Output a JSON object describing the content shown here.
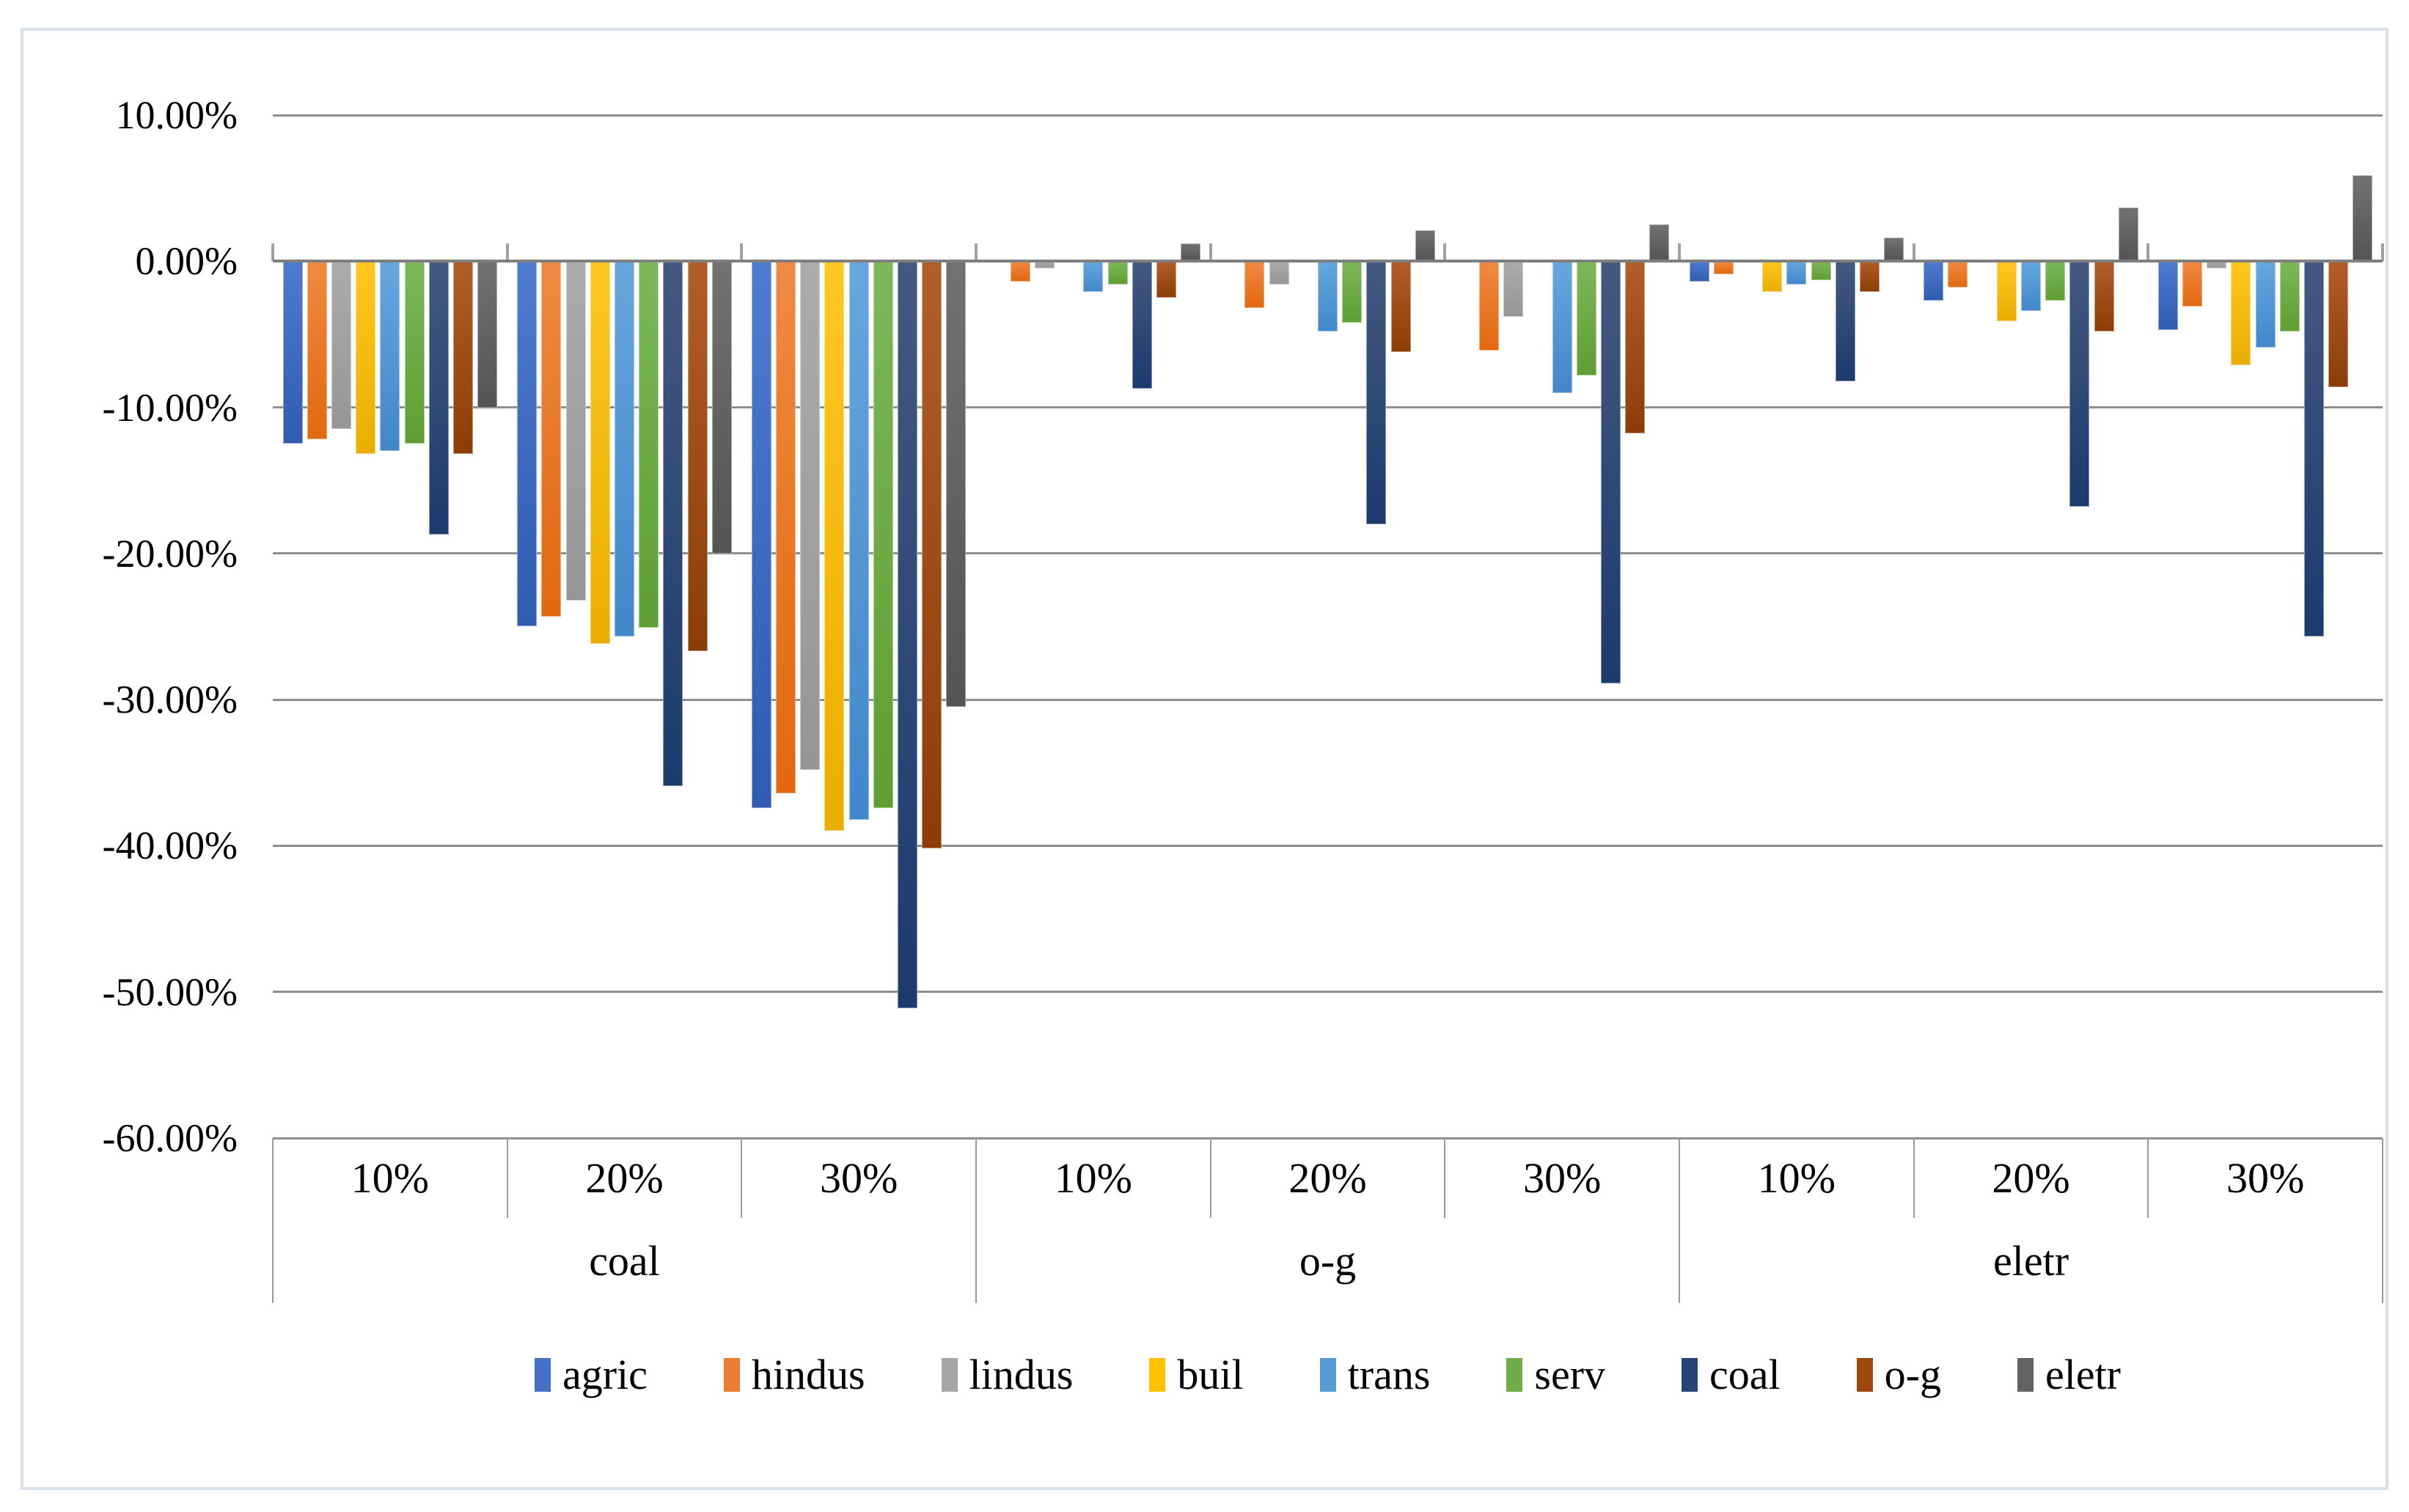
{
  "chart_data": {
    "type": "bar",
    "title": "",
    "y_axis": {
      "unit": "percent",
      "max": 10,
      "min": -60,
      "grid": true,
      "ticks": [
        {
          "value": 10,
          "label": "10.00%"
        },
        {
          "value": 0,
          "label": "0.00%"
        },
        {
          "value": -10,
          "label": "-10.00%"
        },
        {
          "value": -20,
          "label": "-20.00%"
        },
        {
          "value": -30,
          "label": "-30.00%"
        },
        {
          "value": -40,
          "label": "-40.00%"
        },
        {
          "value": -50,
          "label": "-50.00%"
        },
        {
          "value": -60,
          "label": "-60.00%"
        }
      ]
    },
    "x_axis": {
      "tier1_labels": [
        "10%",
        "20%",
        "30%",
        "10%",
        "20%",
        "30%",
        "10%",
        "20%",
        "30%"
      ],
      "tier2_labels": [
        "coal",
        "o-g",
        "eletr"
      ],
      "groups": [
        {
          "fuel": "coal",
          "rate": "10%"
        },
        {
          "fuel": "coal",
          "rate": "20%"
        },
        {
          "fuel": "coal",
          "rate": "30%"
        },
        {
          "fuel": "o-g",
          "rate": "10%"
        },
        {
          "fuel": "o-g",
          "rate": "20%"
        },
        {
          "fuel": "o-g",
          "rate": "30%"
        },
        {
          "fuel": "eletr",
          "rate": "10%"
        },
        {
          "fuel": "eletr",
          "rate": "20%"
        },
        {
          "fuel": "eletr",
          "rate": "30%"
        }
      ]
    },
    "legend": {
      "position": "bottom",
      "entries": [
        "agric",
        "hindus",
        "lindus",
        "buil",
        "trans",
        "serv",
        "coal",
        "o-g",
        "eletr"
      ]
    },
    "series": [
      {
        "name": "agric",
        "color": "#4472C4",
        "color_top": "#4d7bcf",
        "color_bottom": "#2f5cb0",
        "values": [
          -12.5,
          -25.0,
          -37.4,
          0.0,
          0.0,
          0.0,
          -1.4,
          -2.7,
          -4.7
        ]
      },
      {
        "name": "hindus",
        "color": "#ED7D31",
        "color_top": "#f08a42",
        "color_bottom": "#e2680e",
        "values": [
          -12.2,
          -24.3,
          -36.4,
          -1.4,
          -3.2,
          -6.1,
          -0.9,
          -1.8,
          -3.1
        ]
      },
      {
        "name": "lindus",
        "color": "#A5A5A5",
        "color_top": "#acacac",
        "color_bottom": "#969696",
        "values": [
          -11.5,
          -23.2,
          -34.8,
          -0.5,
          -1.6,
          -3.8,
          0.0,
          0.0,
          -0.5
        ]
      },
      {
        "name": "buil",
        "color": "#FFC000",
        "color_top": "#ffc81f",
        "color_bottom": "#eaae00",
        "values": [
          -13.2,
          -26.2,
          -39.0,
          0.0,
          0.0,
          0.0,
          -2.1,
          -4.1,
          -7.1
        ]
      },
      {
        "name": "trans",
        "color": "#5B9BD5",
        "color_top": "#66a7de",
        "color_bottom": "#4187ca",
        "values": [
          -13.0,
          -25.7,
          -38.2,
          -2.1,
          -4.8,
          -9.0,
          -1.6,
          -3.4,
          -5.9
        ]
      },
      {
        "name": "serv",
        "color": "#70AD47",
        "color_top": "#7cb85a",
        "color_bottom": "#5f9e32",
        "values": [
          -12.5,
          -25.1,
          -37.4,
          -1.6,
          -4.2,
          -7.8,
          -1.3,
          -2.7,
          -4.8
        ]
      },
      {
        "name": "coal",
        "color": "#264478",
        "color_top": "#44597f",
        "color_bottom": "#1c3a6e",
        "values": [
          -18.7,
          -35.9,
          -51.1,
          -8.7,
          -18.0,
          -28.9,
          -8.2,
          -16.8,
          -25.7
        ]
      },
      {
        "name": "o-g",
        "color": "#9E480E",
        "color_top": "#b25e2b",
        "color_bottom": "#8c3d05",
        "values": [
          -13.2,
          -26.7,
          -40.2,
          -2.5,
          -6.2,
          -11.8,
          -2.1,
          -4.8,
          -8.6
        ]
      },
      {
        "name": "eletr",
        "color": "#636363",
        "color_top": "#727272",
        "color_bottom": "#545454",
        "values": [
          -10.0,
          -20.0,
          -30.5,
          1.2,
          2.1,
          2.5,
          1.6,
          3.7,
          5.9
        ]
      }
    ]
  }
}
